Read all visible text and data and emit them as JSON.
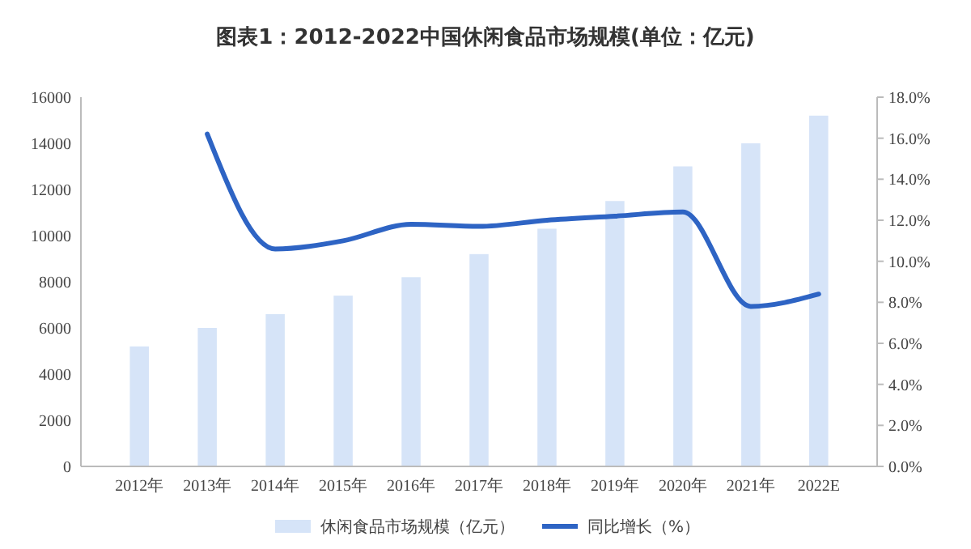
{
  "chart_data": {
    "type": "bar",
    "title": "图表1：2012-2022中国休闲食品市场规模(单位：亿元)",
    "categories": [
      "2012年",
      "2013年",
      "2014年",
      "2015年",
      "2016年",
      "2017年",
      "2018年",
      "2019年",
      "2020年",
      "2021年",
      "2022E"
    ],
    "series": [
      {
        "name": "休闲食品市场规模（亿元）",
        "color": "#d6e4f8",
        "values": [
          5200,
          6000,
          6600,
          7400,
          8200,
          9200,
          10300,
          11500,
          13000,
          14000,
          15200
        ]
      },
      {
        "name": "同比增长（%）",
        "type": "line",
        "axis": "y2",
        "color": "#2e64c4",
        "values": [
          null,
          16.2,
          10.6,
          11.0,
          11.8,
          11.7,
          12.0,
          12.2,
          12.4,
          7.8,
          8.4
        ]
      }
    ],
    "ylim": [
      0,
      16000
    ],
    "yticks": [
      0,
      2000,
      4000,
      6000,
      8000,
      10000,
      12000,
      14000,
      16000
    ],
    "y2lim": [
      0,
      18
    ],
    "y2ticks": [
      {
        "value": 0,
        "label": "0.0%"
      },
      {
        "value": 2,
        "label": "2.0%"
      },
      {
        "value": 4,
        "label": "4.0%"
      },
      {
        "value": 6,
        "label": "6.0%"
      },
      {
        "value": 8,
        "label": "8.0%"
      },
      {
        "value": 10,
        "label": "10.0%"
      },
      {
        "value": 12,
        "label": "12.0%"
      },
      {
        "value": 14,
        "label": "14.0%"
      },
      {
        "value": 16,
        "label": "16.0%"
      },
      {
        "value": 18,
        "label": "18.0%"
      }
    ],
    "legend": "bottom",
    "grid": false
  }
}
